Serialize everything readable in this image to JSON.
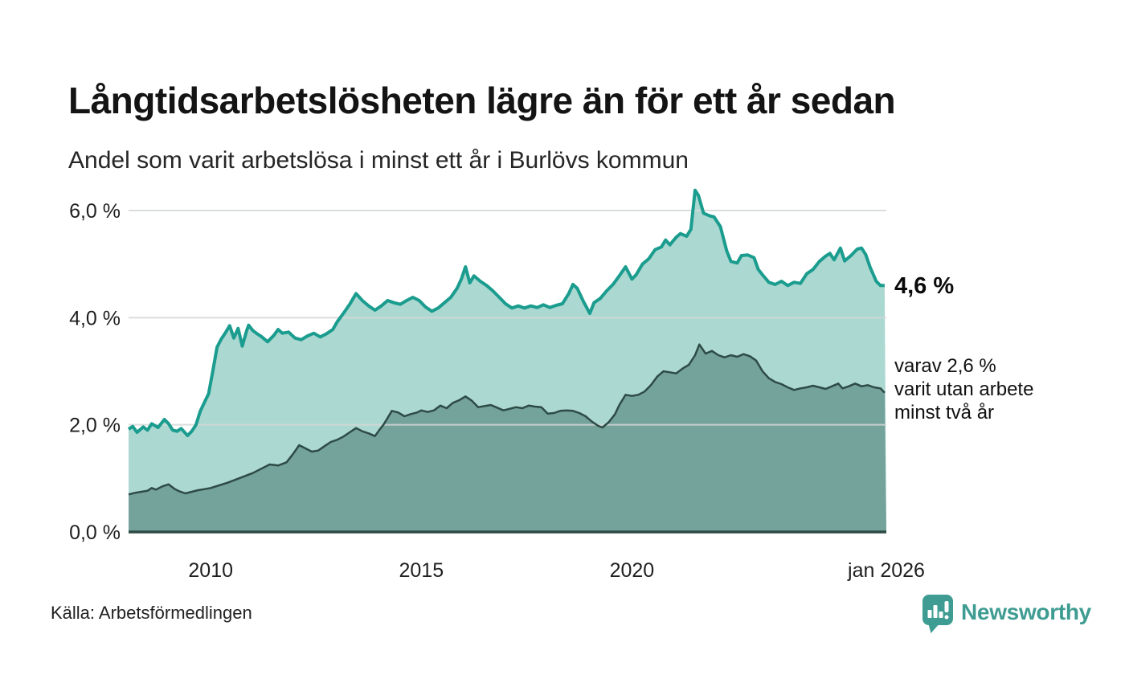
{
  "header": {
    "title": "Långtidsarbetslösheten lägre än för ett år sedan",
    "subtitle": "Andel som varit arbetslösa i minst ett år i Burlövs kommun"
  },
  "annotations": {
    "latest_total": "4,6 %",
    "two_year_line1": "varav 2,6 %",
    "two_year_line2": "varit utan arbete",
    "two_year_line3": "minst två år"
  },
  "footer": {
    "source": "Källa: Arbetsförmedlingen",
    "brand_name": "Newsworthy",
    "brand_icon": "newsworthy-chart-bubble-icon"
  },
  "colors": {
    "title_text": "#141414",
    "body_text": "#222222",
    "brand_teal": "#3e9c92",
    "gridline": "#d5d8d7",
    "axis_line": "#2e4a45",
    "series_total_line": "#1a9c8e",
    "series_total_fill": "#abd8d1",
    "series_two_year_line": "#2e4b46",
    "series_two_year_fill": "#74a39b"
  },
  "chart_data": {
    "type": "area",
    "title": "Långtidsarbetslösheten lägre än för ett år sedan",
    "subtitle": "Andel som varit arbetslösa i minst ett år i Burlövs kommun",
    "unit": "%",
    "grid": true,
    "legend_position": "right-annotations",
    "x_axis": {
      "range": [
        2008.05,
        2026.04
      ],
      "ticks": [
        {
          "value": 2010,
          "label": "2010"
        },
        {
          "value": 2015,
          "label": "2015"
        },
        {
          "value": 2020,
          "label": "2020"
        },
        {
          "value": 2026.04,
          "label": "jan 2026"
        }
      ]
    },
    "y_axis": {
      "range": [
        0,
        6
      ],
      "ticks": [
        {
          "value": 0,
          "label": "0,0 %"
        },
        {
          "value": 2,
          "label": "2,0 %"
        },
        {
          "value": 4,
          "label": "4,0 %"
        },
        {
          "value": 6,
          "label": "6,0 %"
        }
      ]
    },
    "series": [
      {
        "name": "Andel arbetslösa minst ett år",
        "latest_value": 4.6,
        "end_label": "4,6 %",
        "line_color": "#1a9c8e",
        "fill_color": "#abd8d1",
        "line_width": 4,
        "points": [
          [
            2008.05,
            1.92
          ],
          [
            2008.15,
            1.97
          ],
          [
            2008.25,
            1.86
          ],
          [
            2008.4,
            1.96
          ],
          [
            2008.5,
            1.9
          ],
          [
            2008.6,
            2.02
          ],
          [
            2008.75,
            1.95
          ],
          [
            2008.9,
            2.1
          ],
          [
            2009.0,
            2.02
          ],
          [
            2009.1,
            1.9
          ],
          [
            2009.2,
            1.88
          ],
          [
            2009.3,
            1.93
          ],
          [
            2009.45,
            1.8
          ],
          [
            2009.55,
            1.88
          ],
          [
            2009.65,
            2.0
          ],
          [
            2009.75,
            2.25
          ],
          [
            2009.85,
            2.42
          ],
          [
            2009.95,
            2.58
          ],
          [
            2010.05,
            3.0
          ],
          [
            2010.15,
            3.45
          ],
          [
            2010.25,
            3.6
          ],
          [
            2010.35,
            3.72
          ],
          [
            2010.45,
            3.85
          ],
          [
            2010.55,
            3.62
          ],
          [
            2010.65,
            3.8
          ],
          [
            2010.75,
            3.47
          ],
          [
            2010.85,
            3.75
          ],
          [
            2010.9,
            3.86
          ],
          [
            2011.0,
            3.76
          ],
          [
            2011.1,
            3.7
          ],
          [
            2011.2,
            3.65
          ],
          [
            2011.35,
            3.55
          ],
          [
            2011.5,
            3.67
          ],
          [
            2011.6,
            3.78
          ],
          [
            2011.7,
            3.71
          ],
          [
            2011.85,
            3.73
          ],
          [
            2012.0,
            3.62
          ],
          [
            2012.15,
            3.59
          ],
          [
            2012.3,
            3.66
          ],
          [
            2012.45,
            3.71
          ],
          [
            2012.6,
            3.64
          ],
          [
            2012.75,
            3.7
          ],
          [
            2012.9,
            3.78
          ],
          [
            2013.0,
            3.92
          ],
          [
            2013.15,
            4.08
          ],
          [
            2013.3,
            4.25
          ],
          [
            2013.45,
            4.45
          ],
          [
            2013.6,
            4.32
          ],
          [
            2013.75,
            4.22
          ],
          [
            2013.9,
            4.14
          ],
          [
            2014.05,
            4.22
          ],
          [
            2014.2,
            4.32
          ],
          [
            2014.35,
            4.28
          ],
          [
            2014.5,
            4.25
          ],
          [
            2014.65,
            4.32
          ],
          [
            2014.8,
            4.38
          ],
          [
            2014.95,
            4.32
          ],
          [
            2015.1,
            4.2
          ],
          [
            2015.25,
            4.12
          ],
          [
            2015.4,
            4.18
          ],
          [
            2015.55,
            4.28
          ],
          [
            2015.7,
            4.38
          ],
          [
            2015.85,
            4.55
          ],
          [
            2015.95,
            4.72
          ],
          [
            2016.05,
            4.95
          ],
          [
            2016.15,
            4.65
          ],
          [
            2016.25,
            4.78
          ],
          [
            2016.4,
            4.68
          ],
          [
            2016.55,
            4.6
          ],
          [
            2016.7,
            4.5
          ],
          [
            2016.85,
            4.38
          ],
          [
            2017.0,
            4.26
          ],
          [
            2017.15,
            4.18
          ],
          [
            2017.3,
            4.22
          ],
          [
            2017.45,
            4.18
          ],
          [
            2017.6,
            4.22
          ],
          [
            2017.75,
            4.19
          ],
          [
            2017.9,
            4.24
          ],
          [
            2018.05,
            4.19
          ],
          [
            2018.2,
            4.23
          ],
          [
            2018.35,
            4.26
          ],
          [
            2018.5,
            4.45
          ],
          [
            2018.6,
            4.62
          ],
          [
            2018.7,
            4.55
          ],
          [
            2018.85,
            4.3
          ],
          [
            2019.0,
            4.08
          ],
          [
            2019.1,
            4.28
          ],
          [
            2019.25,
            4.36
          ],
          [
            2019.4,
            4.5
          ],
          [
            2019.55,
            4.62
          ],
          [
            2019.7,
            4.78
          ],
          [
            2019.85,
            4.95
          ],
          [
            2020.0,
            4.72
          ],
          [
            2020.1,
            4.8
          ],
          [
            2020.25,
            5.0
          ],
          [
            2020.4,
            5.1
          ],
          [
            2020.55,
            5.27
          ],
          [
            2020.7,
            5.32
          ],
          [
            2020.8,
            5.45
          ],
          [
            2020.9,
            5.36
          ],
          [
            2021.05,
            5.5
          ],
          [
            2021.15,
            5.57
          ],
          [
            2021.3,
            5.52
          ],
          [
            2021.4,
            5.65
          ],
          [
            2021.5,
            6.38
          ],
          [
            2021.58,
            6.28
          ],
          [
            2021.7,
            5.95
          ],
          [
            2021.85,
            5.9
          ],
          [
            2021.95,
            5.88
          ],
          [
            2022.1,
            5.7
          ],
          [
            2022.25,
            5.25
          ],
          [
            2022.35,
            5.05
          ],
          [
            2022.5,
            5.02
          ],
          [
            2022.6,
            5.16
          ],
          [
            2022.75,
            5.17
          ],
          [
            2022.9,
            5.12
          ],
          [
            2023.0,
            4.9
          ],
          [
            2023.1,
            4.8
          ],
          [
            2023.25,
            4.66
          ],
          [
            2023.4,
            4.62
          ],
          [
            2023.55,
            4.68
          ],
          [
            2023.7,
            4.6
          ],
          [
            2023.85,
            4.66
          ],
          [
            2024.0,
            4.64
          ],
          [
            2024.15,
            4.82
          ],
          [
            2024.3,
            4.9
          ],
          [
            2024.45,
            5.05
          ],
          [
            2024.6,
            5.15
          ],
          [
            2024.7,
            5.2
          ],
          [
            2024.8,
            5.08
          ],
          [
            2024.95,
            5.3
          ],
          [
            2025.05,
            5.06
          ],
          [
            2025.2,
            5.16
          ],
          [
            2025.35,
            5.28
          ],
          [
            2025.45,
            5.3
          ],
          [
            2025.55,
            5.18
          ],
          [
            2025.65,
            4.95
          ],
          [
            2025.8,
            4.68
          ],
          [
            2025.9,
            4.6
          ],
          [
            2026.0,
            4.6
          ]
        ]
      },
      {
        "name": "varav utan arbete minst två år",
        "latest_value": 2.6,
        "end_label": "varav 2,6 % varit utan arbete minst två år",
        "line_color": "#2e4b46",
        "fill_color": "#74a39b",
        "line_width": 2.5,
        "points": [
          [
            2008.05,
            0.7
          ],
          [
            2008.2,
            0.73
          ],
          [
            2008.35,
            0.75
          ],
          [
            2008.5,
            0.77
          ],
          [
            2008.6,
            0.82
          ],
          [
            2008.7,
            0.79
          ],
          [
            2008.85,
            0.85
          ],
          [
            2009.0,
            0.89
          ],
          [
            2009.15,
            0.8
          ],
          [
            2009.25,
            0.76
          ],
          [
            2009.4,
            0.72
          ],
          [
            2009.55,
            0.75
          ],
          [
            2009.7,
            0.78
          ],
          [
            2009.85,
            0.8
          ],
          [
            2010.0,
            0.82
          ],
          [
            2010.2,
            0.87
          ],
          [
            2010.4,
            0.92
          ],
          [
            2010.6,
            0.98
          ],
          [
            2010.8,
            1.04
          ],
          [
            2011.0,
            1.1
          ],
          [
            2011.2,
            1.18
          ],
          [
            2011.4,
            1.26
          ],
          [
            2011.6,
            1.24
          ],
          [
            2011.8,
            1.3
          ],
          [
            2011.95,
            1.45
          ],
          [
            2012.1,
            1.62
          ],
          [
            2012.25,
            1.56
          ],
          [
            2012.4,
            1.5
          ],
          [
            2012.55,
            1.52
          ],
          [
            2012.7,
            1.6
          ],
          [
            2012.85,
            1.68
          ],
          [
            2013.0,
            1.72
          ],
          [
            2013.15,
            1.78
          ],
          [
            2013.3,
            1.86
          ],
          [
            2013.45,
            1.94
          ],
          [
            2013.6,
            1.88
          ],
          [
            2013.75,
            1.84
          ],
          [
            2013.9,
            1.79
          ],
          [
            2014.0,
            1.9
          ],
          [
            2014.1,
            2.0
          ],
          [
            2014.2,
            2.13
          ],
          [
            2014.3,
            2.26
          ],
          [
            2014.45,
            2.23
          ],
          [
            2014.6,
            2.16
          ],
          [
            2014.75,
            2.2
          ],
          [
            2014.9,
            2.23
          ],
          [
            2015.0,
            2.27
          ],
          [
            2015.15,
            2.24
          ],
          [
            2015.3,
            2.27
          ],
          [
            2015.45,
            2.36
          ],
          [
            2015.6,
            2.31
          ],
          [
            2015.75,
            2.41
          ],
          [
            2015.9,
            2.46
          ],
          [
            2016.05,
            2.53
          ],
          [
            2016.2,
            2.45
          ],
          [
            2016.35,
            2.33
          ],
          [
            2016.5,
            2.35
          ],
          [
            2016.65,
            2.37
          ],
          [
            2016.8,
            2.32
          ],
          [
            2016.95,
            2.27
          ],
          [
            2017.1,
            2.3
          ],
          [
            2017.25,
            2.33
          ],
          [
            2017.4,
            2.31
          ],
          [
            2017.55,
            2.36
          ],
          [
            2017.7,
            2.34
          ],
          [
            2017.85,
            2.33
          ],
          [
            2018.0,
            2.21
          ],
          [
            2018.15,
            2.22
          ],
          [
            2018.3,
            2.26
          ],
          [
            2018.45,
            2.27
          ],
          [
            2018.6,
            2.26
          ],
          [
            2018.75,
            2.22
          ],
          [
            2018.9,
            2.16
          ],
          [
            2019.05,
            2.06
          ],
          [
            2019.2,
            1.98
          ],
          [
            2019.3,
            1.95
          ],
          [
            2019.45,
            2.05
          ],
          [
            2019.6,
            2.2
          ],
          [
            2019.7,
            2.37
          ],
          [
            2019.85,
            2.56
          ],
          [
            2020.0,
            2.54
          ],
          [
            2020.15,
            2.56
          ],
          [
            2020.3,
            2.62
          ],
          [
            2020.45,
            2.74
          ],
          [
            2020.6,
            2.9
          ],
          [
            2020.75,
            3.0
          ],
          [
            2020.9,
            2.98
          ],
          [
            2021.05,
            2.96
          ],
          [
            2021.2,
            3.05
          ],
          [
            2021.35,
            3.12
          ],
          [
            2021.5,
            3.3
          ],
          [
            2021.6,
            3.5
          ],
          [
            2021.75,
            3.33
          ],
          [
            2021.9,
            3.38
          ],
          [
            2022.05,
            3.3
          ],
          [
            2022.2,
            3.26
          ],
          [
            2022.35,
            3.3
          ],
          [
            2022.5,
            3.27
          ],
          [
            2022.65,
            3.32
          ],
          [
            2022.8,
            3.28
          ],
          [
            2022.95,
            3.2
          ],
          [
            2023.1,
            3.0
          ],
          [
            2023.25,
            2.87
          ],
          [
            2023.4,
            2.8
          ],
          [
            2023.55,
            2.76
          ],
          [
            2023.7,
            2.7
          ],
          [
            2023.85,
            2.65
          ],
          [
            2024.0,
            2.68
          ],
          [
            2024.15,
            2.7
          ],
          [
            2024.3,
            2.73
          ],
          [
            2024.45,
            2.7
          ],
          [
            2024.6,
            2.67
          ],
          [
            2024.75,
            2.72
          ],
          [
            2024.9,
            2.77
          ],
          [
            2025.0,
            2.68
          ],
          [
            2025.15,
            2.72
          ],
          [
            2025.3,
            2.77
          ],
          [
            2025.45,
            2.72
          ],
          [
            2025.6,
            2.74
          ],
          [
            2025.75,
            2.7
          ],
          [
            2025.9,
            2.68
          ],
          [
            2026.0,
            2.6
          ]
        ]
      }
    ]
  }
}
